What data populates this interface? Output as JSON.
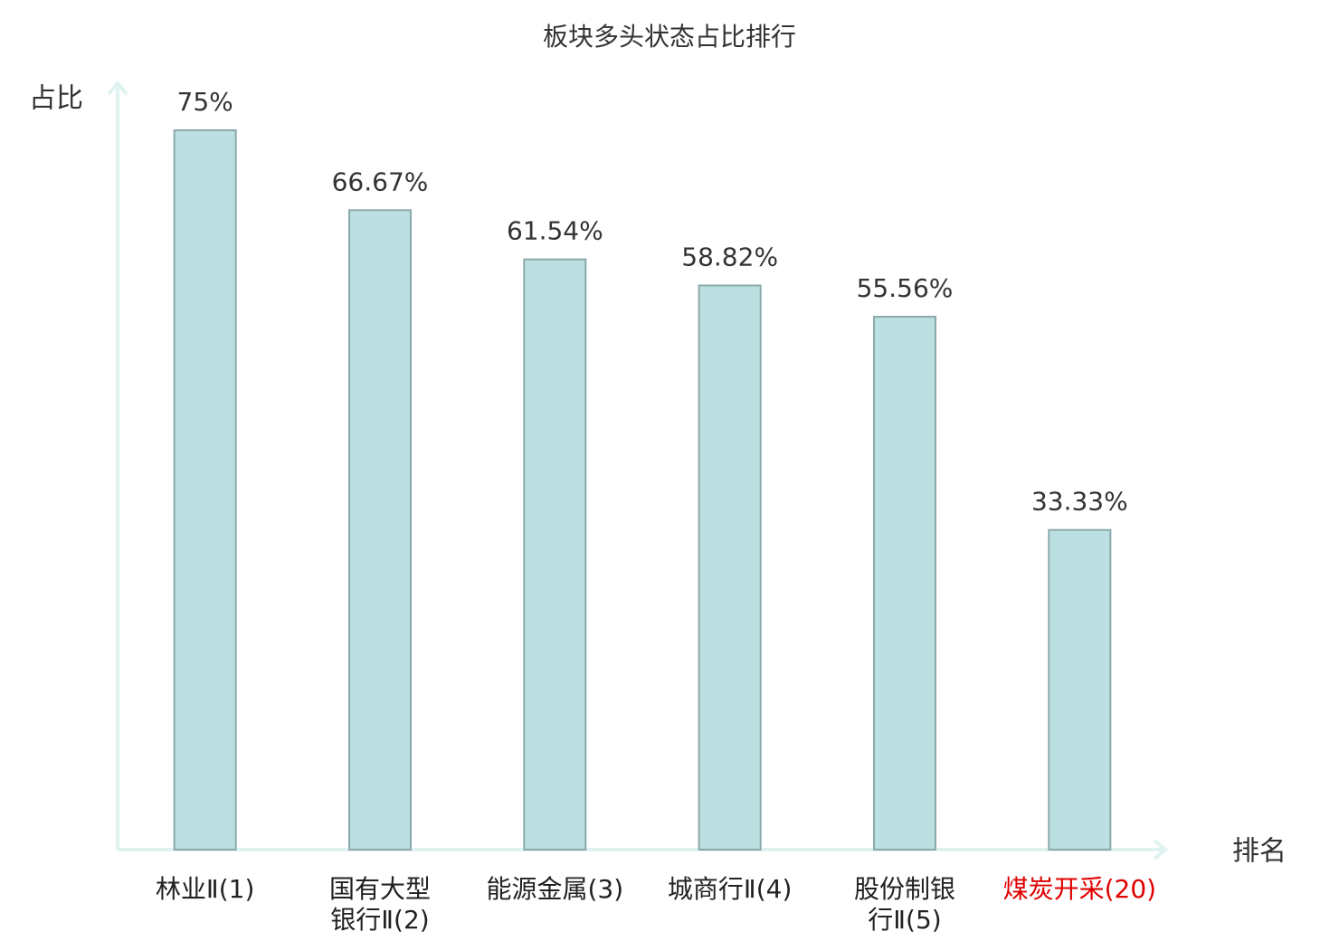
{
  "chart_data": {
    "type": "bar",
    "title": "板块多头状态占比排行",
    "y_label": "占比",
    "x_label": "排名",
    "categories": [
      "林业Ⅱ(1)",
      "国有大型\n银行Ⅱ(2)",
      "能源金属(3)",
      "城商行Ⅱ(4)",
      "股份制银\n行Ⅱ(5)",
      "煤炭开采(20)"
    ],
    "values": [
      75,
      66.67,
      61.54,
      58.82,
      55.56,
      33.33
    ],
    "value_labels": [
      "75%",
      "66.67%",
      "61.54%",
      "58.82%",
      "55.56%",
      "33.33%"
    ],
    "color": "#bce0e2",
    "edge_color": "#8aa9aa",
    "label_colors": [
      "#222222",
      "#222222",
      "#222222",
      "#222222",
      "#222222",
      "#e00000"
    ],
    "ylim": [
      0,
      80
    ],
    "grid": false
  }
}
